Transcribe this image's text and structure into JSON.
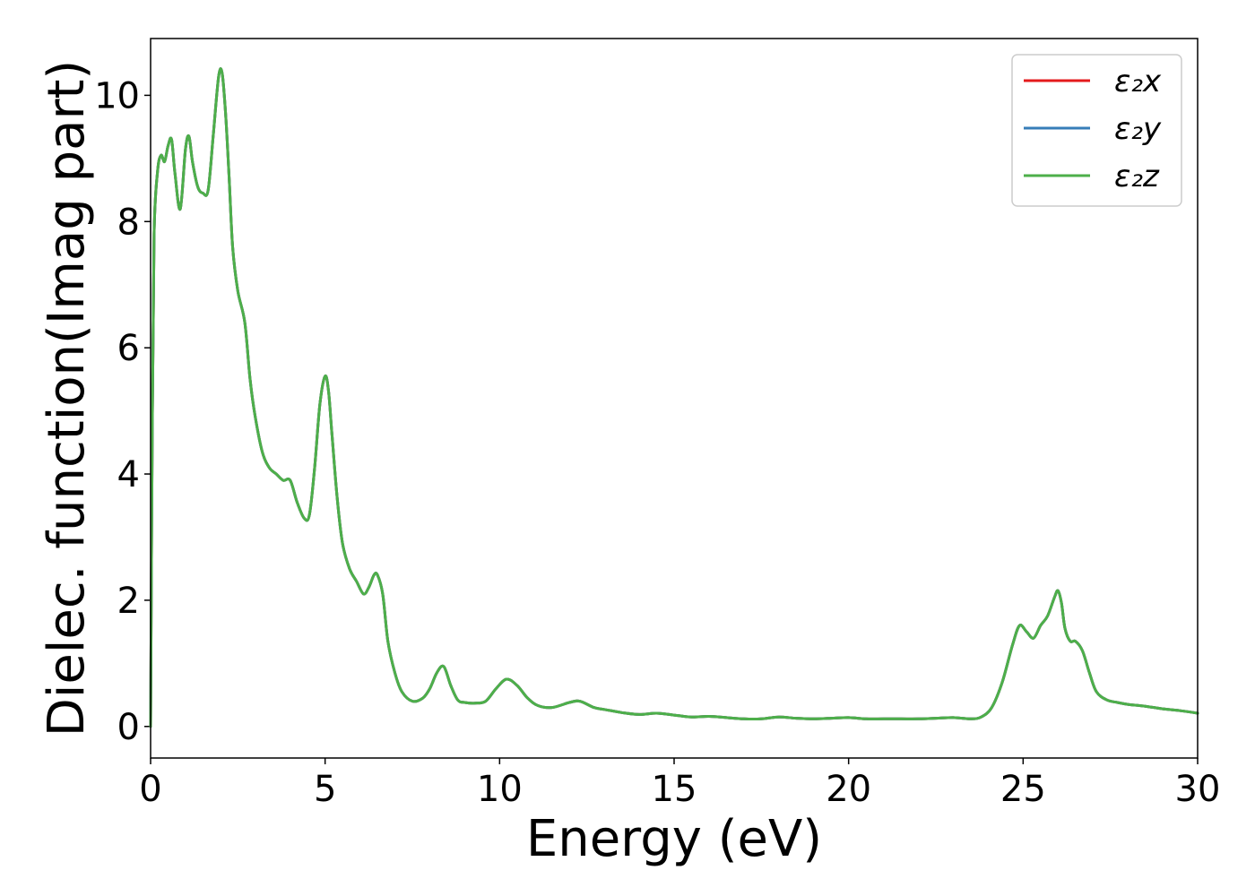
{
  "chart_data": {
    "type": "line",
    "title": "",
    "xlabel": "Energy (eV)",
    "ylabel": "Dielec. function(Imag part)",
    "xlim": [
      0,
      30
    ],
    "ylim": [
      -0.5,
      10.9
    ],
    "xticks": [
      0,
      5,
      10,
      15,
      20,
      25,
      30
    ],
    "yticks": [
      0,
      2,
      4,
      6,
      8,
      10
    ],
    "grid": false,
    "legend_position": "top-right",
    "series": [
      {
        "name": "ε₂x",
        "color": "#e41a1c"
      },
      {
        "name": "ε₂y",
        "color": "#377eb8"
      },
      {
        "name": "ε₂z",
        "color": "#4daf4a"
      }
    ],
    "shared_curve": {
      "x": [
        0.0,
        0.05,
        0.1,
        0.2,
        0.3,
        0.4,
        0.5,
        0.6,
        0.7,
        0.85,
        1.0,
        1.1,
        1.2,
        1.35,
        1.5,
        1.65,
        1.8,
        1.95,
        2.05,
        2.15,
        2.25,
        2.35,
        2.5,
        2.7,
        2.85,
        3.0,
        3.2,
        3.4,
        3.6,
        3.8,
        4.0,
        4.2,
        4.4,
        4.55,
        4.7,
        4.85,
        5.0,
        5.1,
        5.2,
        5.35,
        5.5,
        5.7,
        5.9,
        6.1,
        6.25,
        6.4,
        6.5,
        6.65,
        6.8,
        7.0,
        7.2,
        7.5,
        7.8,
        8.0,
        8.2,
        8.4,
        8.6,
        8.8,
        9.0,
        9.3,
        9.6,
        9.9,
        10.2,
        10.5,
        10.8,
        11.1,
        11.5,
        12.0,
        12.3,
        12.7,
        13.0,
        13.5,
        14.0,
        14.5,
        15.0,
        15.5,
        16.0,
        16.5,
        17.0,
        17.5,
        18.0,
        18.5,
        19.0,
        19.5,
        20.0,
        20.5,
        21.0,
        21.5,
        22.0,
        22.5,
        23.0,
        23.5,
        23.8,
        24.1,
        24.4,
        24.7,
        24.9,
        25.1,
        25.3,
        25.5,
        25.7,
        25.9,
        26.0,
        26.1,
        26.2,
        26.35,
        26.5,
        26.7,
        26.9,
        27.1,
        27.4,
        27.7,
        28.0,
        28.5,
        29.0,
        29.5,
        30.0
      ],
      "y": [
        0.0,
        4.8,
        7.8,
        8.8,
        9.05,
        8.95,
        9.2,
        9.3,
        8.75,
        8.2,
        9.15,
        9.35,
        8.95,
        8.55,
        8.45,
        8.5,
        9.4,
        10.3,
        10.35,
        9.7,
        8.7,
        7.6,
        6.9,
        6.4,
        5.5,
        4.9,
        4.35,
        4.1,
        4.0,
        3.9,
        3.9,
        3.55,
        3.3,
        3.35,
        4.1,
        5.1,
        5.55,
        5.3,
        4.6,
        3.6,
        2.9,
        2.5,
        2.3,
        2.1,
        2.2,
        2.4,
        2.4,
        2.1,
        1.35,
        0.85,
        0.55,
        0.4,
        0.45,
        0.6,
        0.85,
        0.95,
        0.65,
        0.42,
        0.38,
        0.37,
        0.4,
        0.6,
        0.75,
        0.65,
        0.45,
        0.33,
        0.3,
        0.38,
        0.4,
        0.3,
        0.27,
        0.22,
        0.19,
        0.21,
        0.18,
        0.15,
        0.16,
        0.14,
        0.12,
        0.12,
        0.15,
        0.13,
        0.12,
        0.13,
        0.14,
        0.12,
        0.12,
        0.12,
        0.12,
        0.13,
        0.14,
        0.12,
        0.15,
        0.3,
        0.7,
        1.3,
        1.6,
        1.5,
        1.4,
        1.6,
        1.75,
        2.05,
        2.15,
        1.95,
        1.55,
        1.35,
        1.35,
        1.2,
        0.85,
        0.55,
        0.42,
        0.38,
        0.35,
        0.32,
        0.28,
        0.25,
        0.21
      ]
    }
  }
}
